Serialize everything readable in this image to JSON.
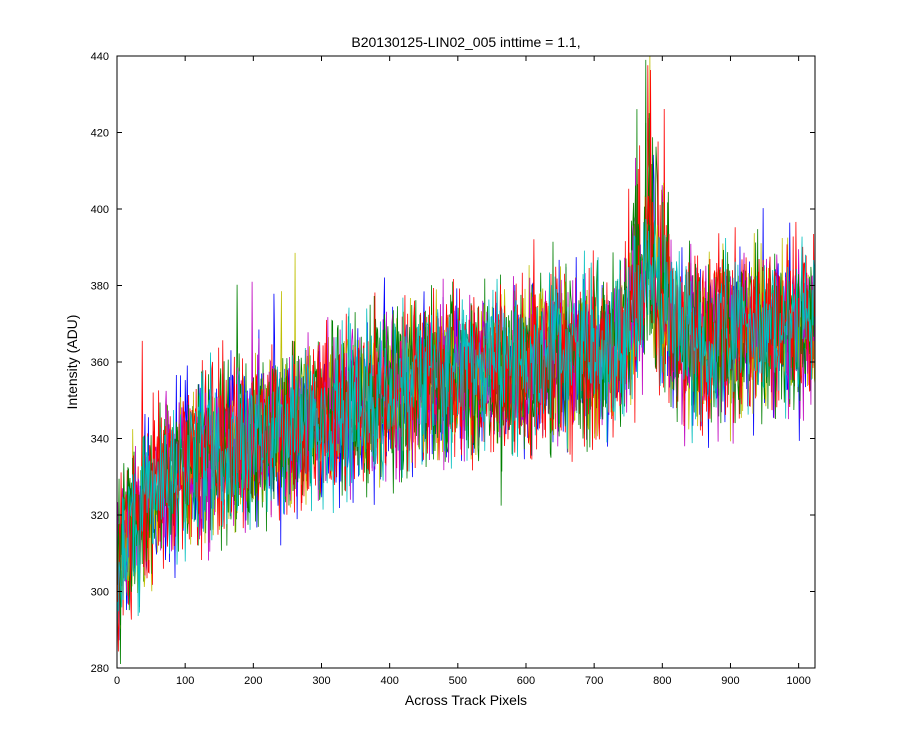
{
  "chart_data": {
    "type": "line",
    "title": "B20130125-LIN02_005 inttime = 1.1,",
    "xlabel": "Across Track Pixels",
    "ylabel": "Intensity (ADU)",
    "xlim": [
      0,
      1024
    ],
    "ylim": [
      280,
      440
    ],
    "xticks": [
      0,
      100,
      200,
      300,
      400,
      500,
      600,
      700,
      800,
      900,
      1000
    ],
    "yticks": [
      280,
      300,
      320,
      340,
      360,
      380,
      400,
      420,
      440
    ],
    "grid": false,
    "legend": "none",
    "n_points": 1024,
    "trend": [
      {
        "x": 0,
        "y": 305
      },
      {
        "x": 20,
        "y": 318
      },
      {
        "x": 50,
        "y": 325
      },
      {
        "x": 100,
        "y": 333
      },
      {
        "x": 200,
        "y": 340
      },
      {
        "x": 300,
        "y": 346
      },
      {
        "x": 400,
        "y": 352
      },
      {
        "x": 500,
        "y": 356
      },
      {
        "x": 600,
        "y": 359
      },
      {
        "x": 700,
        "y": 362
      },
      {
        "x": 750,
        "y": 366
      },
      {
        "x": 780,
        "y": 385
      },
      {
        "x": 800,
        "y": 375
      },
      {
        "x": 830,
        "y": 364
      },
      {
        "x": 900,
        "y": 366
      },
      {
        "x": 1000,
        "y": 369
      },
      {
        "x": 1024,
        "y": 370
      }
    ],
    "noise_amplitude": 22,
    "series": [
      {
        "color": "#0000ff"
      },
      {
        "color": "#008000"
      },
      {
        "color": "#ff0000"
      },
      {
        "color": "#bfbf00"
      },
      {
        "color": "#bf00bf"
      },
      {
        "color": "#008000"
      },
      {
        "color": "#ff0000"
      },
      {
        "color": "#00bfbf"
      }
    ]
  }
}
